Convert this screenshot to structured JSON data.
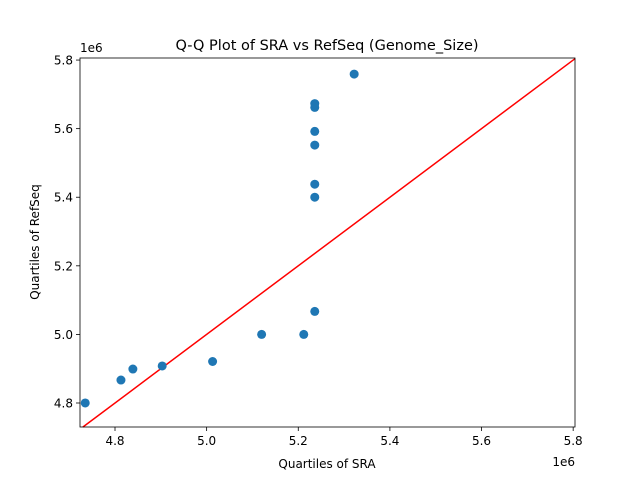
{
  "chart_data": {
    "type": "scatter",
    "title": "Q-Q Plot of SRA vs RefSeq (Genome_Size)",
    "xlabel": "Quartiles of SRA",
    "ylabel": "Quartiles of RefSeq",
    "x_offset_label": "1e6",
    "y_offset_label": "1e6",
    "xlim": [
      4.7236,
      5.804
    ],
    "ylim": [
      4.73,
      5.806
    ],
    "xticks": [
      4.8,
      5.0,
      5.2,
      5.4,
      5.6,
      5.8
    ],
    "xtick_labels": [
      "4.8",
      "5.0",
      "5.2",
      "5.4",
      "5.6",
      "5.8"
    ],
    "yticks": [
      4.8,
      5.0,
      5.2,
      5.4,
      5.6,
      5.8
    ],
    "ytick_labels": [
      "4.8",
      "5.0",
      "5.2",
      "5.4",
      "5.6",
      "5.8"
    ],
    "grid": false,
    "points": [
      {
        "x": 4.735,
        "y": 4.8
      },
      {
        "x": 4.813,
        "y": 4.867
      },
      {
        "x": 4.839,
        "y": 4.899
      },
      {
        "x": 4.903,
        "y": 4.908
      },
      {
        "x": 5.013,
        "y": 4.921
      },
      {
        "x": 5.12,
        "y": 5.0
      },
      {
        "x": 5.212,
        "y": 5.0
      },
      {
        "x": 5.236,
        "y": 5.067
      },
      {
        "x": 5.236,
        "y": 5.4
      },
      {
        "x": 5.236,
        "y": 5.438
      },
      {
        "x": 5.236,
        "y": 5.552
      },
      {
        "x": 5.236,
        "y": 5.592
      },
      {
        "x": 5.236,
        "y": 5.662
      },
      {
        "x": 5.236,
        "y": 5.673
      },
      {
        "x": 5.322,
        "y": 5.759
      }
    ],
    "reference_line": {
      "type": "y=x",
      "color": "#ff0000"
    },
    "point_color": "#1f77b4"
  }
}
